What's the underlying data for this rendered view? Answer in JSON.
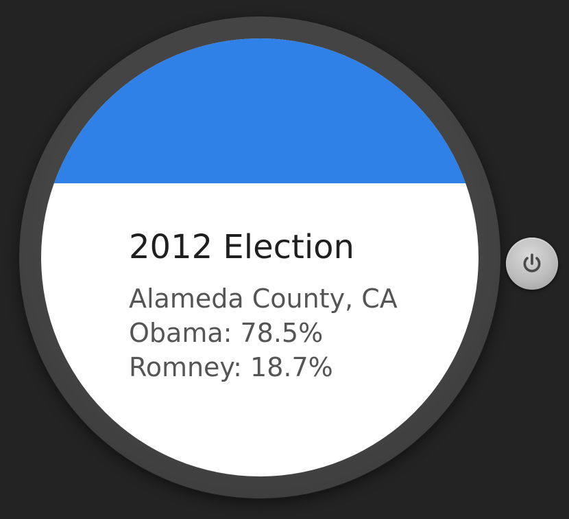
{
  "card": {
    "title": "2012 Election",
    "county": "Alameda County, CA",
    "obama": "Obama: 78.5%",
    "romney": "Romney: 18.7%"
  },
  "colors": {
    "header_band": "#2f80e7",
    "screen": "#ffffff",
    "bezel": "#444444",
    "background": "#232323"
  },
  "controls": {
    "power_icon": "power-icon"
  }
}
